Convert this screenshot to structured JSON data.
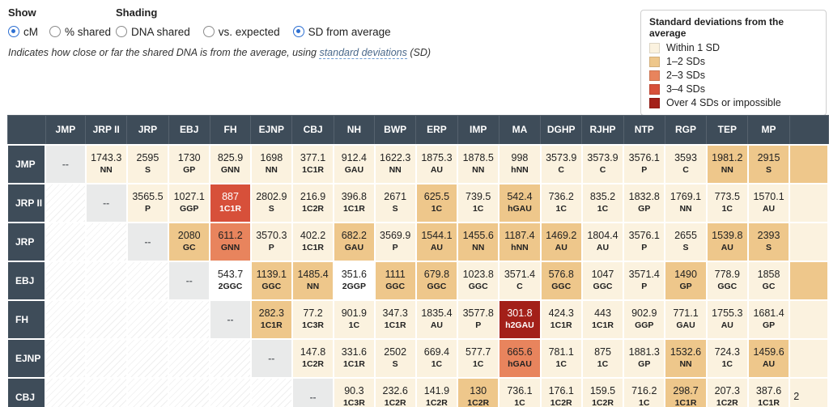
{
  "controls": {
    "show_label": "Show",
    "shading_label": "Shading",
    "show_options": [
      {
        "label": "cM",
        "selected": true
      },
      {
        "label": "% shared",
        "selected": false
      }
    ],
    "shading_options": [
      {
        "label": "DNA shared",
        "selected": false
      },
      {
        "label": "vs. expected",
        "selected": false
      },
      {
        "label": "SD from average",
        "selected": true
      }
    ],
    "note_prefix": "Indicates how close or far the shared DNA is from the average, using ",
    "note_link": "standard deviations",
    "note_suffix": " (SD)"
  },
  "legend": {
    "title": "Standard deviations from the average",
    "items": [
      {
        "label": "Within 1 SD",
        "sd": "0"
      },
      {
        "label": "1–2 SDs",
        "sd": "1"
      },
      {
        "label": "2–3 SDs",
        "sd": "2"
      },
      {
        "label": "3–4 SDs",
        "sd": "3"
      },
      {
        "label": "Over 4 SDs or impossible",
        "sd": "4"
      }
    ]
  },
  "sd_colors": {
    "0": "#fbf2df",
    "1": "#eec78b",
    "2": "#e8845d",
    "3": "#d7503a",
    "4": "#a32019",
    "wh": "#ffffff"
  },
  "header_bg": "#3e4c59",
  "table": {
    "self_text": "--",
    "columns": [
      "JMP",
      "JRP II",
      "JRP",
      "EBJ",
      "FH",
      "EJNP",
      "CBJ",
      "NH",
      "BWP",
      "ERP",
      "IMP",
      "MA",
      "DGHP",
      "RJHP",
      "NTP",
      "RGP",
      "TEP",
      "MP"
    ],
    "rows": [
      {
        "label": "JMP",
        "extra": {
          "sd": "1",
          "v": ""
        },
        "cells": [
          {
            "type": "self"
          },
          {
            "v": "1743.3",
            "code": "NN",
            "sd": "0"
          },
          {
            "v": "2595",
            "code": "S",
            "sd": "0"
          },
          {
            "v": "1730",
            "code": "GP",
            "sd": "0"
          },
          {
            "v": "825.9",
            "code": "GNN",
            "sd": "0"
          },
          {
            "v": "1698",
            "code": "NN",
            "sd": "0"
          },
          {
            "v": "377.1",
            "code": "1C1R",
            "sd": "0"
          },
          {
            "v": "912.4",
            "code": "GAU",
            "sd": "0"
          },
          {
            "v": "1622.3",
            "code": "NN",
            "sd": "0"
          },
          {
            "v": "1875.3",
            "code": "AU",
            "sd": "0"
          },
          {
            "v": "1878.5",
            "code": "NN",
            "sd": "0"
          },
          {
            "v": "998",
            "code": "hNN",
            "sd": "0"
          },
          {
            "v": "3573.9",
            "code": "C",
            "sd": "0"
          },
          {
            "v": "3573.9",
            "code": "C",
            "sd": "0"
          },
          {
            "v": "3576.1",
            "code": "P",
            "sd": "0"
          },
          {
            "v": "3593",
            "code": "C",
            "sd": "0"
          },
          {
            "v": "1981.2",
            "code": "NN",
            "sd": "1"
          },
          {
            "v": "2915",
            "code": "S",
            "sd": "1"
          }
        ]
      },
      {
        "label": "JRP II",
        "extra": {
          "sd": "0",
          "v": ""
        },
        "cells": [
          {
            "type": "blank"
          },
          {
            "type": "self"
          },
          {
            "v": "3565.5",
            "code": "P",
            "sd": "0"
          },
          {
            "v": "1027.1",
            "code": "GGP",
            "sd": "0"
          },
          {
            "v": "887",
            "code": "1C1R",
            "sd": "3"
          },
          {
            "v": "2802.9",
            "code": "S",
            "sd": "0"
          },
          {
            "v": "216.9",
            "code": "1C2R",
            "sd": "0"
          },
          {
            "v": "396.8",
            "code": "1C1R",
            "sd": "0"
          },
          {
            "v": "2671",
            "code": "S",
            "sd": "0"
          },
          {
            "v": "625.5",
            "code": "1C",
            "sd": "1"
          },
          {
            "v": "739.5",
            "code": "1C",
            "sd": "0"
          },
          {
            "v": "542.4",
            "code": "hGAU",
            "sd": "1"
          },
          {
            "v": "736.2",
            "code": "1C",
            "sd": "0"
          },
          {
            "v": "835.2",
            "code": "1C",
            "sd": "0"
          },
          {
            "v": "1832.8",
            "code": "GP",
            "sd": "0"
          },
          {
            "v": "1769.1",
            "code": "NN",
            "sd": "0"
          },
          {
            "v": "773.5",
            "code": "1C",
            "sd": "0"
          },
          {
            "v": "1570.1",
            "code": "AU",
            "sd": "0"
          }
        ]
      },
      {
        "label": "JRP",
        "extra": {
          "sd": "0",
          "v": ""
        },
        "cells": [
          {
            "type": "blank"
          },
          {
            "type": "blank"
          },
          {
            "type": "self"
          },
          {
            "v": "2080",
            "code": "GC",
            "sd": "1"
          },
          {
            "v": "611.2",
            "code": "GNN",
            "sd": "2"
          },
          {
            "v": "3570.3",
            "code": "P",
            "sd": "0"
          },
          {
            "v": "402.2",
            "code": "1C1R",
            "sd": "0"
          },
          {
            "v": "682.2",
            "code": "GAU",
            "sd": "1"
          },
          {
            "v": "3569.9",
            "code": "P",
            "sd": "0"
          },
          {
            "v": "1544.1",
            "code": "AU",
            "sd": "1"
          },
          {
            "v": "1455.6",
            "code": "NN",
            "sd": "1"
          },
          {
            "v": "1187.4",
            "code": "hNN",
            "sd": "1"
          },
          {
            "v": "1469.2",
            "code": "AU",
            "sd": "1"
          },
          {
            "v": "1804.4",
            "code": "AU",
            "sd": "0"
          },
          {
            "v": "3576.1",
            "code": "P",
            "sd": "0"
          },
          {
            "v": "2655",
            "code": "S",
            "sd": "0"
          },
          {
            "v": "1539.8",
            "code": "AU",
            "sd": "1"
          },
          {
            "v": "2393",
            "code": "S",
            "sd": "1"
          }
        ]
      },
      {
        "label": "EBJ",
        "extra": {
          "sd": "1",
          "v": ""
        },
        "cells": [
          {
            "type": "blank"
          },
          {
            "type": "blank"
          },
          {
            "type": "blank"
          },
          {
            "type": "self"
          },
          {
            "v": "543.7",
            "code": "2GGC",
            "sd": "wh"
          },
          {
            "v": "1139.1",
            "code": "GGC",
            "sd": "1"
          },
          {
            "v": "1485.4",
            "code": "NN",
            "sd": "1"
          },
          {
            "v": "351.6",
            "code": "2GGP",
            "sd": "wh"
          },
          {
            "v": "1111",
            "code": "GGC",
            "sd": "1"
          },
          {
            "v": "679.8",
            "code": "GGC",
            "sd": "1"
          },
          {
            "v": "1023.8",
            "code": "GGC",
            "sd": "0"
          },
          {
            "v": "3571.4",
            "code": "C",
            "sd": "0"
          },
          {
            "v": "576.8",
            "code": "GGC",
            "sd": "1"
          },
          {
            "v": "1047",
            "code": "GGC",
            "sd": "0"
          },
          {
            "v": "3571.4",
            "code": "P",
            "sd": "0"
          },
          {
            "v": "1490",
            "code": "GP",
            "sd": "1"
          },
          {
            "v": "778.9",
            "code": "GGC",
            "sd": "0"
          },
          {
            "v": "1858",
            "code": "GC",
            "sd": "0"
          }
        ]
      },
      {
        "label": "FH",
        "extra": {
          "sd": "0",
          "v": ""
        },
        "cells": [
          {
            "type": "blank"
          },
          {
            "type": "blank"
          },
          {
            "type": "blank"
          },
          {
            "type": "blank"
          },
          {
            "type": "self"
          },
          {
            "v": "282.3",
            "code": "1C1R",
            "sd": "1"
          },
          {
            "v": "77.2",
            "code": "1C3R",
            "sd": "0"
          },
          {
            "v": "901.9",
            "code": "1C",
            "sd": "0"
          },
          {
            "v": "347.3",
            "code": "1C1R",
            "sd": "0"
          },
          {
            "v": "1835.4",
            "code": "AU",
            "sd": "0"
          },
          {
            "v": "3577.8",
            "code": "P",
            "sd": "0"
          },
          {
            "v": "301.8",
            "code": "h2GAU",
            "sd": "4"
          },
          {
            "v": "424.3",
            "code": "1C1R",
            "sd": "0"
          },
          {
            "v": "443",
            "code": "1C1R",
            "sd": "0"
          },
          {
            "v": "902.9",
            "code": "GGP",
            "sd": "0"
          },
          {
            "v": "771.1",
            "code": "GAU",
            "sd": "0"
          },
          {
            "v": "1755.3",
            "code": "AU",
            "sd": "0"
          },
          {
            "v": "1681.4",
            "code": "GP",
            "sd": "0"
          }
        ]
      },
      {
        "label": "EJNP",
        "extra": {
          "sd": "0",
          "v": ""
        },
        "cells": [
          {
            "type": "blank"
          },
          {
            "type": "blank"
          },
          {
            "type": "blank"
          },
          {
            "type": "blank"
          },
          {
            "type": "blank"
          },
          {
            "type": "self"
          },
          {
            "v": "147.8",
            "code": "1C2R",
            "sd": "0"
          },
          {
            "v": "331.6",
            "code": "1C1R",
            "sd": "0"
          },
          {
            "v": "2502",
            "code": "S",
            "sd": "0"
          },
          {
            "v": "669.4",
            "code": "1C",
            "sd": "0"
          },
          {
            "v": "577.7",
            "code": "1C",
            "sd": "0"
          },
          {
            "v": "665.6",
            "code": "hGAU",
            "sd": "2"
          },
          {
            "v": "781.1",
            "code": "1C",
            "sd": "0"
          },
          {
            "v": "875",
            "code": "1C",
            "sd": "0"
          },
          {
            "v": "1881.3",
            "code": "GP",
            "sd": "0"
          },
          {
            "v": "1532.6",
            "code": "NN",
            "sd": "1"
          },
          {
            "v": "724.3",
            "code": "1C",
            "sd": "0"
          },
          {
            "v": "1459.6",
            "code": "AU",
            "sd": "1"
          }
        ]
      },
      {
        "label": "CBJ",
        "extra": {
          "sd": "0",
          "v": "2"
        },
        "cells": [
          {
            "type": "blank"
          },
          {
            "type": "blank"
          },
          {
            "type": "blank"
          },
          {
            "type": "blank"
          },
          {
            "type": "blank"
          },
          {
            "type": "blank"
          },
          {
            "type": "self"
          },
          {
            "v": "90.3",
            "code": "1C3R",
            "sd": "0"
          },
          {
            "v": "232.6",
            "code": "1C2R",
            "sd": "0"
          },
          {
            "v": "141.9",
            "code": "1C2R",
            "sd": "0"
          },
          {
            "v": "130",
            "code": "1C2R",
            "sd": "1"
          },
          {
            "v": "736.1",
            "code": "1C",
            "sd": "0"
          },
          {
            "v": "176.1",
            "code": "1C2R",
            "sd": "0"
          },
          {
            "v": "159.5",
            "code": "1C2R",
            "sd": "0"
          },
          {
            "v": "716.2",
            "code": "1C",
            "sd": "0"
          },
          {
            "v": "298.7",
            "code": "1C1R",
            "sd": "1"
          },
          {
            "v": "207.3",
            "code": "1C2R",
            "sd": "0"
          },
          {
            "v": "387.6",
            "code": "1C1R",
            "sd": "0"
          }
        ]
      }
    ]
  }
}
